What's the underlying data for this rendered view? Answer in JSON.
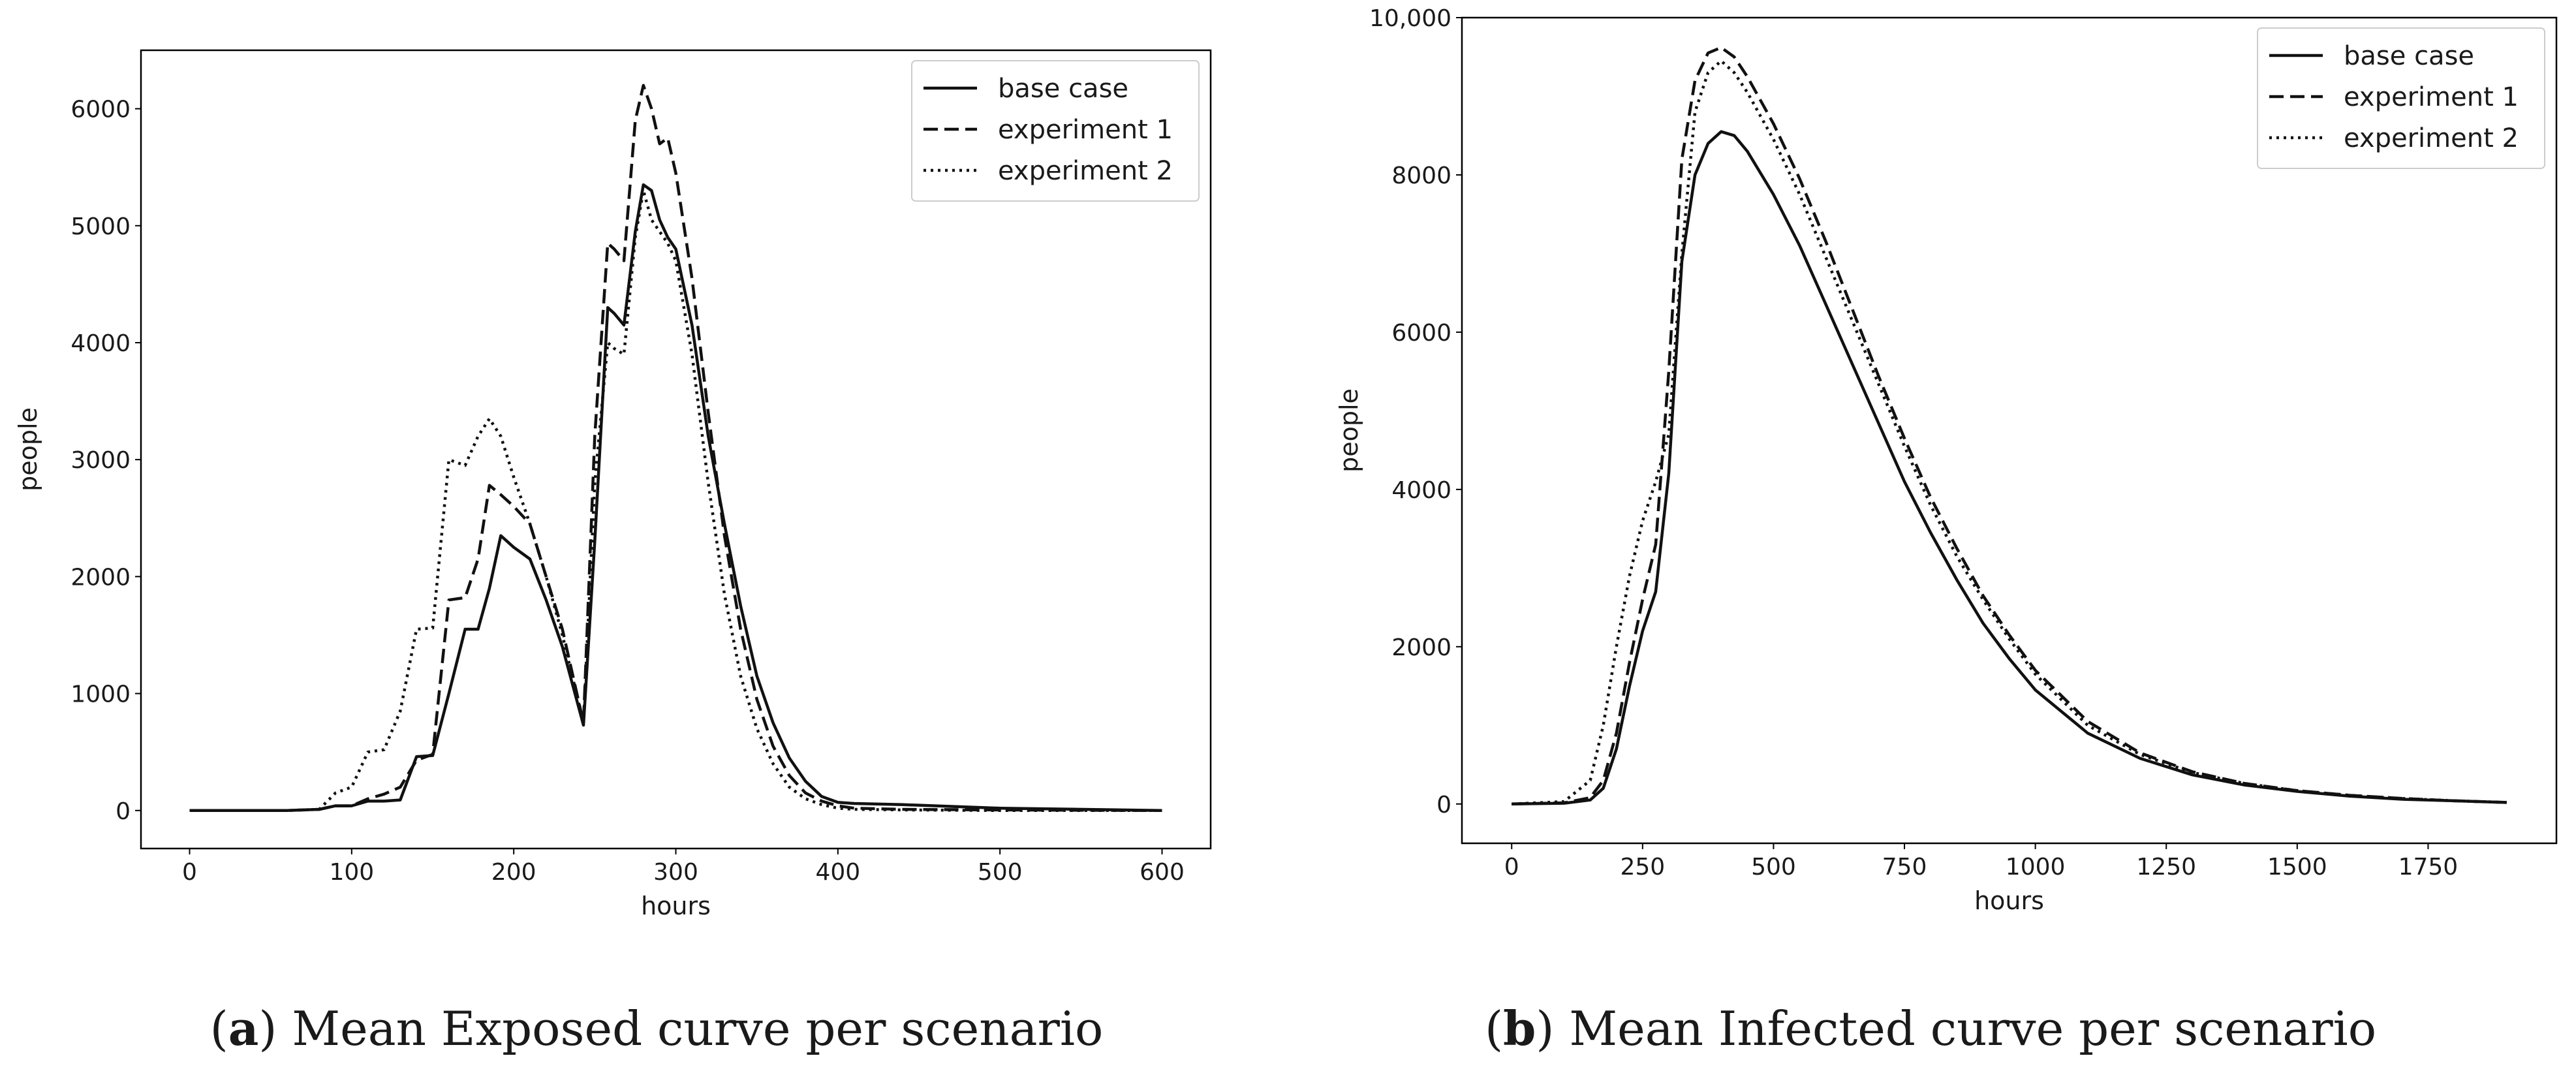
{
  "chart_data": [
    {
      "type": "line",
      "panel": "a",
      "caption": {
        "open": "(",
        "letter": "a",
        "close": ")",
        "text": " Mean Exposed curve per scenario"
      },
      "xlabel": "hours",
      "ylabel": "people",
      "xlim": [
        -30,
        630
      ],
      "ylim": [
        -325,
        6500
      ],
      "xticks": [
        0,
        100,
        200,
        300,
        400,
        500,
        600
      ],
      "yticks": [
        0,
        1000,
        2000,
        3000,
        4000,
        5000,
        6000
      ],
      "ytick_labels": [
        "0",
        "1000",
        "2000",
        "3000",
        "4000",
        "5000",
        "6000"
      ],
      "legend_position": "top-right",
      "series": [
        {
          "name": "base case",
          "style": "solid",
          "x": [
            0,
            60,
            80,
            90,
            100,
            110,
            120,
            130,
            140,
            150,
            160,
            170,
            178,
            185,
            192,
            200,
            210,
            220,
            230,
            243,
            250,
            258,
            262,
            268,
            275,
            280,
            285,
            290,
            295,
            300,
            310,
            320,
            330,
            340,
            350,
            360,
            370,
            380,
            390,
            400,
            410,
            440,
            500,
            600
          ],
          "y": [
            0,
            0,
            10,
            40,
            40,
            80,
            80,
            90,
            460,
            470,
            1000,
            1550,
            1550,
            1900,
            2350,
            2250,
            2150,
            1800,
            1400,
            730,
            2300,
            4300,
            4250,
            4150,
            4950,
            5350,
            5300,
            5050,
            4900,
            4800,
            4150,
            3200,
            2450,
            1750,
            1150,
            750,
            450,
            250,
            120,
            70,
            60,
            50,
            20,
            0
          ]
        },
        {
          "name": "experiment 1",
          "style": "dashed",
          "x": [
            0,
            60,
            80,
            90,
            100,
            110,
            120,
            130,
            140,
            150,
            160,
            170,
            178,
            185,
            192,
            200,
            210,
            220,
            230,
            243,
            250,
            258,
            262,
            268,
            275,
            280,
            285,
            290,
            295,
            300,
            310,
            320,
            330,
            340,
            350,
            360,
            370,
            380,
            390,
            400,
            410,
            440,
            500,
            600
          ],
          "y": [
            0,
            0,
            10,
            40,
            40,
            100,
            140,
            200,
            430,
            480,
            1800,
            1820,
            2150,
            2780,
            2700,
            2600,
            2450,
            2000,
            1550,
            750,
            3200,
            4850,
            4800,
            4700,
            5900,
            6200,
            6000,
            5700,
            5750,
            5450,
            4550,
            3400,
            2350,
            1550,
            950,
            550,
            300,
            150,
            80,
            40,
            20,
            10,
            5,
            0
          ]
        },
        {
          "name": "experiment 2",
          "style": "dotted",
          "x": [
            0,
            60,
            80,
            90,
            100,
            110,
            120,
            130,
            140,
            150,
            160,
            170,
            178,
            185,
            192,
            200,
            210,
            220,
            230,
            243,
            250,
            258,
            262,
            268,
            275,
            280,
            285,
            290,
            295,
            300,
            310,
            320,
            330,
            340,
            350,
            360,
            370,
            380,
            390,
            400,
            410,
            440,
            500,
            600
          ],
          "y": [
            0,
            0,
            10,
            150,
            200,
            500,
            520,
            850,
            1550,
            1560,
            3000,
            2950,
            3200,
            3350,
            3200,
            2850,
            2450,
            2000,
            1500,
            750,
            2800,
            4000,
            3950,
            3900,
            4900,
            5300,
            5050,
            4950,
            4850,
            4700,
            3900,
            2800,
            1850,
            1150,
            700,
            400,
            200,
            100,
            50,
            20,
            10,
            5,
            0,
            0
          ]
        }
      ]
    },
    {
      "type": "line",
      "panel": "b",
      "caption": {
        "open": "(",
        "letter": "b",
        "close": ")",
        "text": " Mean Infected curve per scenario"
      },
      "xlabel": "hours",
      "ylabel": "people",
      "xlim": [
        -95,
        1995
      ],
      "ylim": [
        -500,
        10000
      ],
      "xticks": [
        0,
        250,
        500,
        750,
        1000,
        1250,
        1500,
        1750
      ],
      "yticks": [
        0,
        2000,
        4000,
        6000,
        8000,
        10000
      ],
      "ytick_labels": [
        "0",
        "2000",
        "4000",
        "6000",
        "8000",
        "10,000"
      ],
      "legend_position": "top-right",
      "series": [
        {
          "name": "base case",
          "style": "solid",
          "x": [
            0,
            100,
            150,
            175,
            200,
            225,
            250,
            275,
            300,
            325,
            350,
            375,
            400,
            425,
            450,
            500,
            550,
            600,
            650,
            700,
            750,
            800,
            850,
            900,
            950,
            1000,
            1100,
            1200,
            1300,
            1400,
            1500,
            1600,
            1700,
            1800,
            1900
          ],
          "y": [
            0,
            10,
            50,
            200,
            700,
            1500,
            2200,
            2700,
            4200,
            6900,
            8000,
            8400,
            8550,
            8500,
            8300,
            7750,
            7100,
            6350,
            5600,
            4850,
            4100,
            3450,
            2850,
            2300,
            1850,
            1450,
            900,
            580,
            370,
            240,
            160,
            100,
            60,
            40,
            20
          ]
        },
        {
          "name": "experiment 1",
          "style": "dashed",
          "x": [
            0,
            100,
            150,
            175,
            200,
            225,
            250,
            275,
            300,
            325,
            350,
            375,
            400,
            425,
            450,
            500,
            550,
            600,
            650,
            700,
            750,
            800,
            850,
            900,
            950,
            1000,
            1100,
            1200,
            1300,
            1400,
            1500,
            1600,
            1700,
            1800,
            1900
          ],
          "y": [
            0,
            15,
            80,
            300,
            900,
            1800,
            2600,
            3300,
            5500,
            8200,
            9200,
            9550,
            9620,
            9500,
            9250,
            8650,
            7950,
            7150,
            6300,
            5450,
            4650,
            3900,
            3250,
            2650,
            2150,
            1700,
            1050,
            650,
            410,
            260,
            170,
            110,
            70,
            40,
            20
          ]
        },
        {
          "name": "experiment 2",
          "style": "dotted",
          "x": [
            0,
            100,
            150,
            175,
            200,
            225,
            250,
            275,
            300,
            325,
            350,
            375,
            400,
            425,
            450,
            500,
            550,
            600,
            650,
            700,
            750,
            800,
            850,
            900,
            950,
            1000,
            1100,
            1200,
            1300,
            1400,
            1500,
            1600,
            1700,
            1800,
            1900
          ],
          "y": [
            0,
            30,
            300,
            1000,
            2000,
            2900,
            3600,
            4100,
            4700,
            7000,
            8800,
            9300,
            9450,
            9300,
            9050,
            8450,
            7750,
            6950,
            6150,
            5350,
            4550,
            3800,
            3150,
            2600,
            2100,
            1650,
            1000,
            630,
            400,
            260,
            170,
            110,
            70,
            40,
            20
          ]
        }
      ]
    }
  ]
}
